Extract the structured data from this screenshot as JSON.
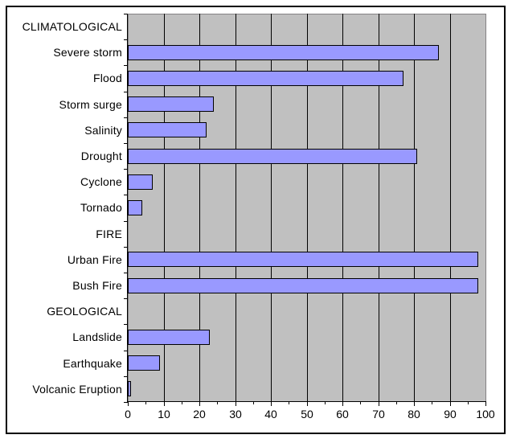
{
  "chart_data": {
    "type": "bar",
    "orientation": "horizontal",
    "title": "",
    "xlabel": "",
    "ylabel": "",
    "categories": [
      "CLIMATOLOGICAL",
      "Severe storm",
      "Flood",
      "Storm surge",
      "Salinity",
      "Drought",
      "Cyclone",
      "Tornado",
      "FIRE",
      "Urban Fire",
      "Bush Fire",
      "GEOLOGICAL",
      "Landslide",
      "Earthquake",
      "Volcanic Eruption"
    ],
    "values": [
      null,
      87,
      77,
      24,
      22,
      81,
      7,
      4,
      null,
      98,
      98,
      null,
      23,
      9,
      1
    ],
    "group_headers": [
      "CLIMATOLOGICAL",
      "FIRE",
      "GEOLOGICAL"
    ],
    "xlim": [
      0,
      100
    ],
    "x_ticks": [
      0,
      10,
      20,
      30,
      40,
      50,
      60,
      70,
      80,
      90,
      100
    ],
    "x_minor_tick_step": 5,
    "grid": true,
    "legend": false,
    "colors": {
      "bar_fill": "#9999FF",
      "bar_border": "#000000",
      "plot_background": "#C0C0C0",
      "plot_border": "#848284",
      "gridline": "#000000",
      "axis_line": "#000000",
      "tick": "#000000",
      "text": "#000000",
      "page_background": "#FFFFFF",
      "frame_border": "#000000"
    }
  }
}
